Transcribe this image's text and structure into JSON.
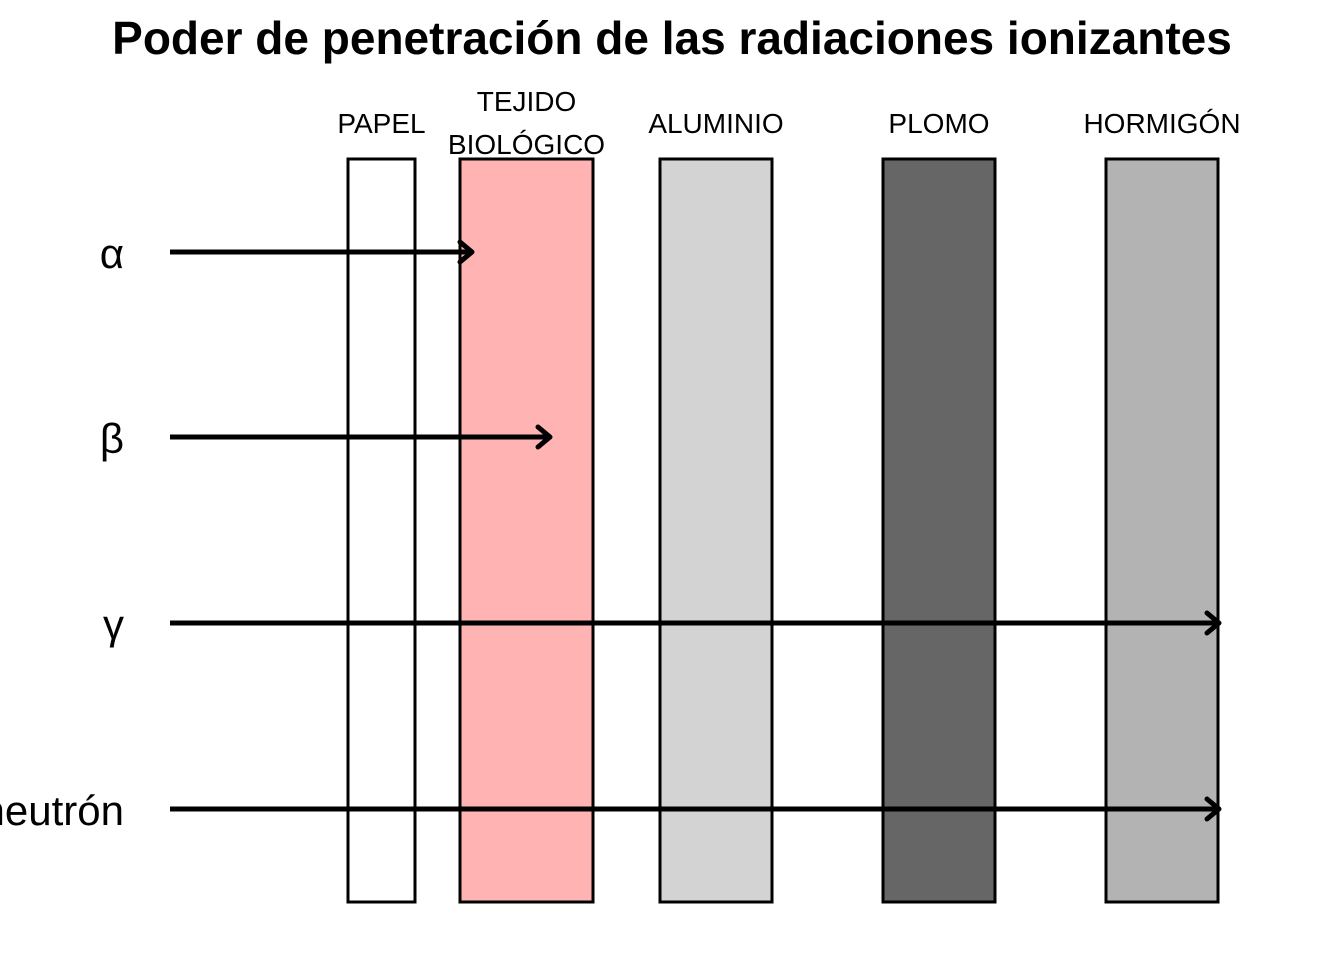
{
  "title": "Poder de penetración de las radiaciones ionizantes",
  "materials": [
    {
      "id": "papel",
      "lines": [
        "PAPEL"
      ],
      "color": "#ffffff"
    },
    {
      "id": "tejido",
      "lines": [
        "TEJIDO",
        "BIOLÓGICO"
      ],
      "color": "#ffb3b3"
    },
    {
      "id": "aluminio",
      "lines": [
        "ALUMINIO"
      ],
      "color": "#d3d3d3"
    },
    {
      "id": "plomo",
      "lines": [
        "PLOMO"
      ],
      "color": "#666666"
    },
    {
      "id": "hormigon",
      "lines": [
        "HORMIGÓN"
      ],
      "color": "#b3b3b3"
    }
  ],
  "radiations": [
    {
      "id": "alpha",
      "label": "α",
      "stops_in": "tejido"
    },
    {
      "id": "beta",
      "label": "β",
      "stops_in": "tejido"
    },
    {
      "id": "gamma",
      "label": "γ",
      "stops_in": "hormigon"
    },
    {
      "id": "neutron",
      "label": "neutrón",
      "stops_in": "hormigon"
    }
  ]
}
